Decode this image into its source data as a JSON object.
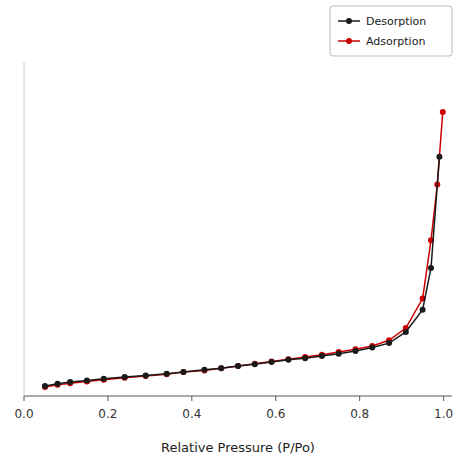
{
  "chart_data": {
    "type": "line",
    "xlabel": "Relative Pressure (P/Po)",
    "series": [
      {
        "name": "Desorption",
        "color": "#1a1a1a",
        "marker": "circle",
        "x": [
          0.05,
          0.08,
          0.11,
          0.15,
          0.19,
          0.24,
          0.29,
          0.34,
          0.38,
          0.43,
          0.47,
          0.51,
          0.55,
          0.59,
          0.63,
          0.67,
          0.71,
          0.75,
          0.79,
          0.83,
          0.87,
          0.91,
          0.95,
          0.97,
          0.99
        ],
        "values": [
          18,
          22,
          25,
          28,
          31,
          34,
          37,
          40,
          43,
          47,
          50,
          54,
          57,
          61,
          65,
          68,
          72,
          76,
          81,
          87,
          95,
          115,
          155,
          230,
          430
        ]
      },
      {
        "name": "Adsorption",
        "color": "#cc0000",
        "marker": "circle",
        "x": [
          0.05,
          0.08,
          0.11,
          0.15,
          0.19,
          0.24,
          0.29,
          0.34,
          0.38,
          0.43,
          0.47,
          0.51,
          0.55,
          0.59,
          0.63,
          0.67,
          0.71,
          0.75,
          0.79,
          0.83,
          0.87,
          0.91,
          0.95,
          0.97,
          0.985,
          0.998
        ],
        "values": [
          16,
          20,
          23,
          26,
          29,
          33,
          36,
          39,
          43,
          46,
          50,
          54,
          58,
          62,
          66,
          70,
          74,
          79,
          84,
          90,
          100,
          122,
          175,
          280,
          380,
          510
        ]
      }
    ],
    "xlim": [
      0.0,
      1.02
    ],
    "xticks": [
      {
        "value": 0.0,
        "label": "0.0"
      },
      0.2,
      0.4,
      0.6,
      0.8,
      {
        "value": 1.0,
        "label": "1.0"
      }
    ],
    "ylim": [
      0,
      600
    ],
    "tick_labels": "x",
    "legend": "upper right",
    "grid": false
  }
}
